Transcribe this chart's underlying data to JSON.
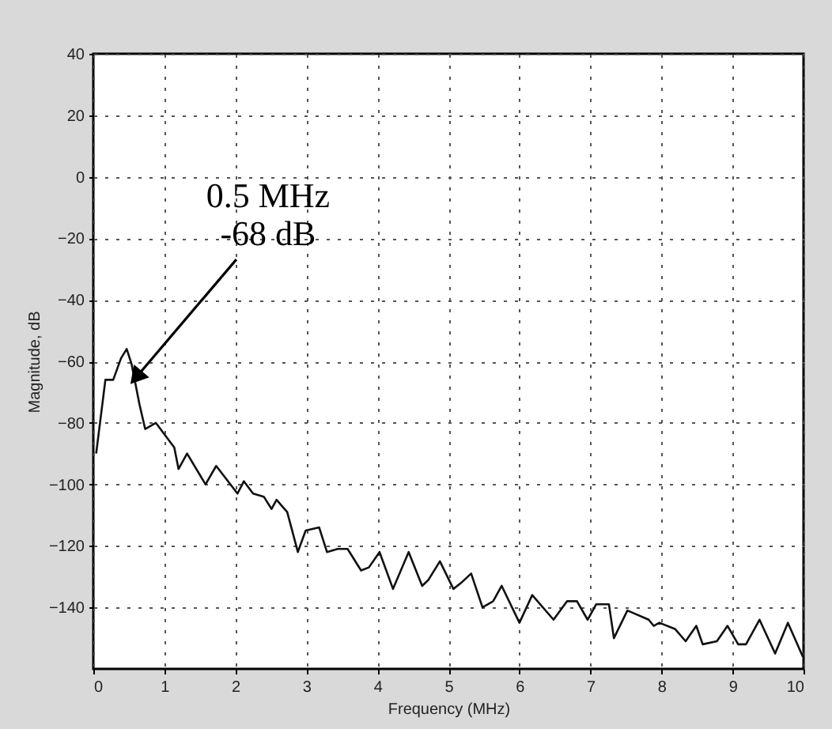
{
  "chart_data": {
    "type": "line",
    "xlabel": "Frequency (MHz)",
    "ylabel": "Magnitude, dB",
    "xlim": [
      0,
      10
    ],
    "ylim": [
      -160,
      40
    ],
    "xticks": [
      0,
      1,
      2,
      3,
      4,
      5,
      6,
      7,
      8,
      9,
      10
    ],
    "yticks": [
      40,
      20,
      0,
      -20,
      -40,
      -60,
      -80,
      -100,
      -120,
      -140
    ],
    "grid": true,
    "line_style": "solid",
    "annotations": [
      {
        "text": "0.5 MHz\n-68 dB",
        "x": 0.5,
        "y": -68
      }
    ],
    "series": [
      {
        "color": "#111111",
        "x": [
          0.04,
          0.17,
          0.28,
          0.39,
          0.47,
          0.54,
          0.65,
          0.73,
          0.88,
          1.14,
          1.2,
          1.32,
          1.58,
          1.73,
          2.03,
          2.12,
          2.25,
          2.4,
          2.51,
          2.58,
          2.73,
          2.88,
          2.99,
          3.18,
          3.29,
          3.44,
          3.58,
          3.77,
          3.88,
          4.03,
          4.22,
          4.44,
          4.63,
          4.72,
          4.88,
          5.07,
          5.18,
          5.32,
          5.48,
          5.63,
          5.75,
          6.0,
          6.18,
          6.48,
          6.67,
          6.81,
          6.96,
          7.08,
          7.26,
          7.33,
          7.52,
          7.82,
          7.89,
          7.97,
          8.19,
          8.34,
          8.49,
          8.58,
          8.78,
          8.93,
          9.08,
          9.19,
          9.38,
          9.6,
          9.78,
          9.99
        ],
        "values": [
          -90,
          -66,
          -66,
          -59,
          -56,
          -61,
          -74,
          -82,
          -80,
          -88,
          -95,
          -90,
          -100,
          -94,
          -103,
          -99,
          -103,
          -104,
          -108,
          -105,
          -109,
          -122,
          -115,
          -114,
          -122,
          -121,
          -121,
          -128,
          -127,
          -122,
          -134,
          -122,
          -133,
          -131,
          -125,
          -134,
          -132,
          -129,
          -140,
          -138,
          -133,
          -145,
          -136,
          -144,
          -138,
          -138,
          -144,
          -139,
          -139,
          -150,
          -141,
          -144,
          -146,
          -145,
          -147,
          -151,
          -146,
          -152,
          -151,
          -146,
          -152,
          -152,
          -144,
          -155,
          -145,
          -156
        ]
      }
    ]
  }
}
